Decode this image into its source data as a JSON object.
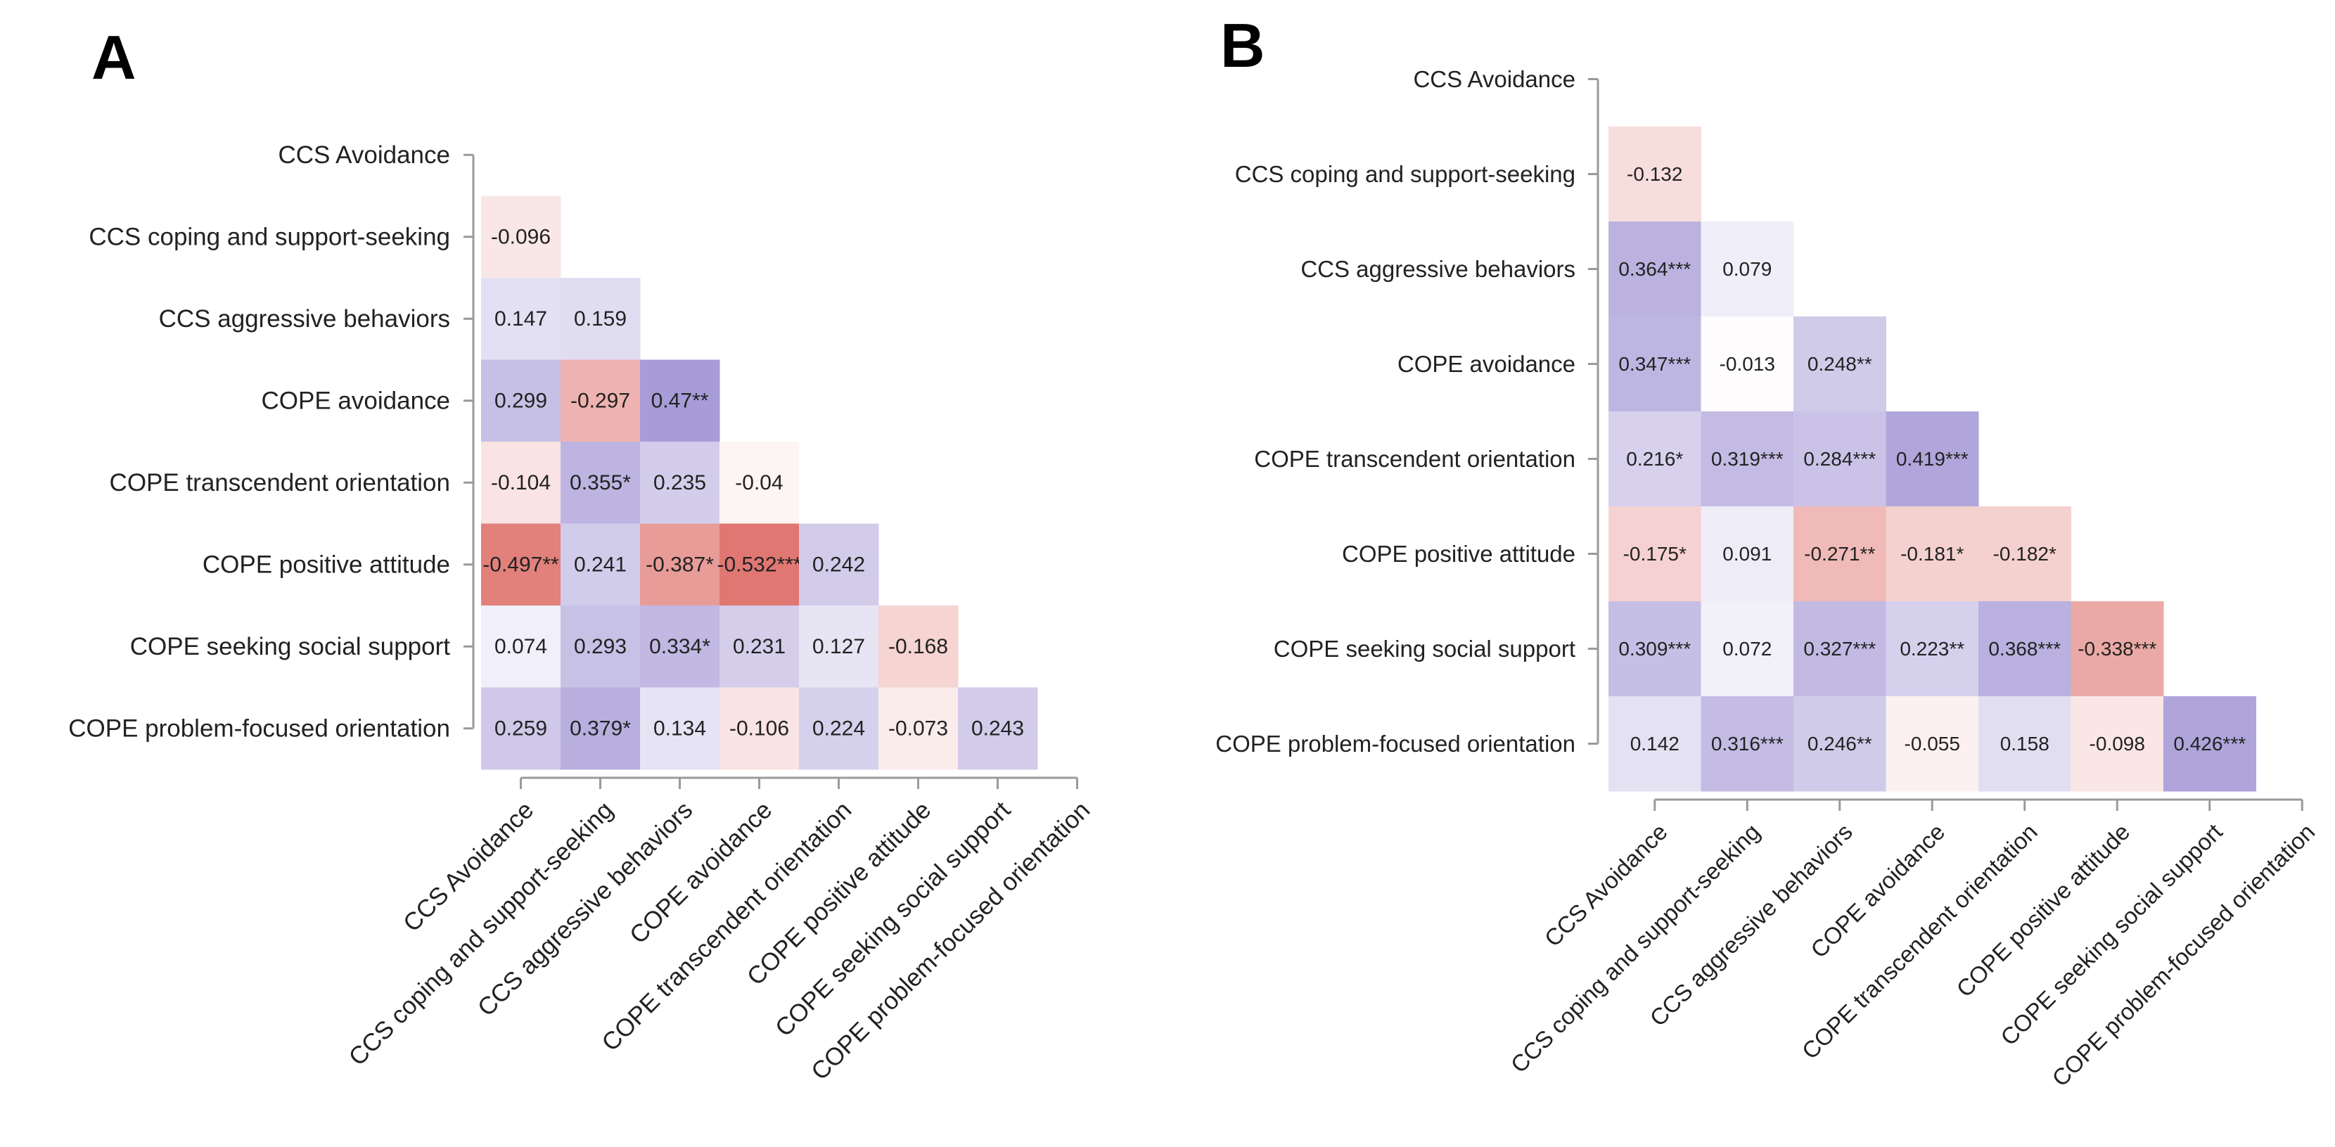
{
  "colors": {
    "positive": "#8f80cc",
    "negative": "#dc6660",
    "neutral": "#ffffff",
    "axis": "#9a9a9a",
    "text": "#222222"
  },
  "chart_data": [
    {
      "type": "heatmap",
      "panel_label": "A",
      "variables": [
        "CCS Avoidance",
        "CCS coping and support-seeking",
        "CCS aggressive behaviors",
        "COPE avoidance",
        "COPE transcendent orientation",
        "COPE positive attitude",
        "COPE seeking social support",
        "COPE problem-focused orientation"
      ],
      "layout": "lower-triangle",
      "cells": [
        [],
        [
          "-0.096"
        ],
        [
          "0.147",
          "0.159"
        ],
        [
          "0.299",
          "-0.297",
          "0.47**"
        ],
        [
          "-0.104",
          "0.355*",
          "0.235",
          "-0.04"
        ],
        [
          "-0.497**",
          "0.241",
          "-0.387*",
          "-0.532***",
          "0.242"
        ],
        [
          "0.074",
          "0.293",
          "0.334*",
          "0.231",
          "0.127",
          "-0.168"
        ],
        [
          "0.259",
          "0.379*",
          "0.134",
          "-0.106",
          "0.224",
          "-0.073",
          "0.243"
        ]
      ]
    },
    {
      "type": "heatmap",
      "panel_label": "B",
      "variables": [
        "CCS Avoidance",
        "CCS coping and support-seeking",
        "CCS aggressive behaviors",
        "COPE avoidance",
        "COPE transcendent orientation",
        "COPE positive attitude",
        "COPE seeking social support",
        "COPE problem-focused orientation"
      ],
      "layout": "lower-triangle",
      "cells": [
        [],
        [
          "-0.132"
        ],
        [
          "0.364***",
          "0.079"
        ],
        [
          "0.347***",
          "-0.013",
          "0.248**"
        ],
        [
          "0.216*",
          "0.319***",
          "0.284***",
          "0.419***"
        ],
        [
          "-0.175*",
          "0.091",
          "-0.271**",
          "-0.181*",
          "-0.182*"
        ],
        [
          "0.309***",
          "0.072",
          "0.327***",
          "0.223**",
          "0.368***",
          "-0.338***"
        ],
        [
          "0.142",
          "0.316***",
          "0.246**",
          "-0.055",
          "0.158",
          "-0.098",
          "0.426***"
        ]
      ]
    }
  ]
}
